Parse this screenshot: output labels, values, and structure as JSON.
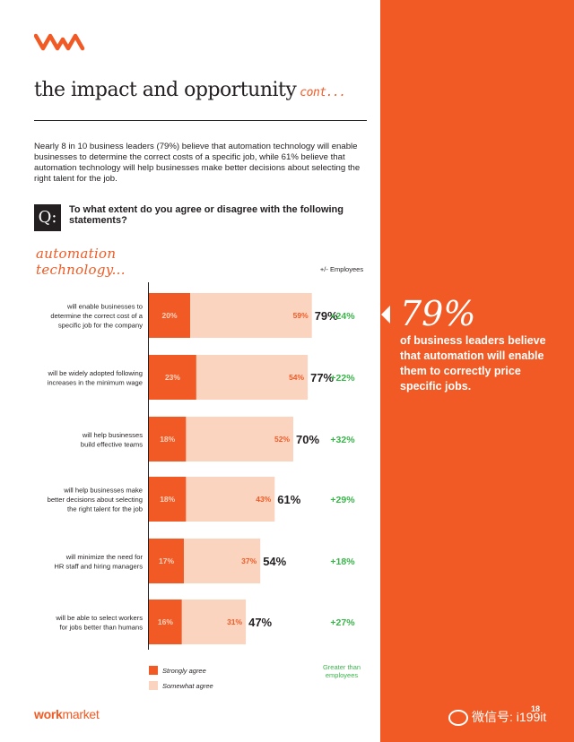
{
  "header": {
    "title": "the impact and opportunity",
    "title_suffix": "cont..."
  },
  "intro": "Nearly 8 in 10 business leaders (79%) believe that automation technology will enable businesses to determine the correct costs of a specific job, while 61% believe that automation technology will help businesses make better decisions about selecting the right talent for the job.",
  "question": {
    "badge": "Q:",
    "text": "To what extent do you agree or disagree with the following statements?"
  },
  "section_title": "automation technology...",
  "column_header": "+/- Employees",
  "legend": {
    "strongly": "Strongly agree",
    "somewhat": "Somewhat agree",
    "note": "Greater than employees"
  },
  "callout": {
    "big": "79%",
    "text": "of business leaders believe that automation will enable them to correctly price specific jobs."
  },
  "footer": {
    "brand_work": "work",
    "brand_market": "market",
    "page": "18",
    "watermark": "微信号: i199it"
  },
  "colors": {
    "accent": "#f15a24",
    "light": "#fbd4c0",
    "positive": "#39b54a",
    "text": "#231f20"
  },
  "chart_data": {
    "type": "bar",
    "orientation": "horizontal",
    "stacked": true,
    "categories": [
      "will enable businesses to determine the correct cost of a specific job for the company",
      "will be widely adopted following increases in the minimum wage",
      "will help businesses build effective teams",
      "will help businesses make better decisions about selecting the right talent for the job",
      "will minimize the need for HR staff and hiring managers",
      "will be able to select workers for jobs better than humans"
    ],
    "category_lines": [
      [
        "will enable businesses to",
        "determine the correct cost of a",
        "specific job for the company"
      ],
      [
        "will be widely adopted following",
        "increases in the minimum wage"
      ],
      [
        "will help businesses",
        "build effective teams"
      ],
      [
        "will help businesses make",
        "better decisions about selecting",
        "the right talent for the job"
      ],
      [
        "will minimize the need for",
        "HR staff and hiring managers"
      ],
      [
        "will be able to select workers",
        "for jobs better than humans"
      ]
    ],
    "series": [
      {
        "name": "Strongly agree",
        "values": [
          20,
          23,
          18,
          18,
          17,
          16
        ]
      },
      {
        "name": "Somewhat agree",
        "values": [
          59,
          54,
          52,
          43,
          37,
          31
        ]
      }
    ],
    "totals": [
      79,
      77,
      70,
      61,
      54,
      47
    ],
    "diff_vs_employees": [
      "+24%",
      "+22%",
      "+32%",
      "+29%",
      "+18%",
      "+27%"
    ],
    "xlim": [
      0,
      100
    ],
    "legend_position": "bottom-left"
  }
}
